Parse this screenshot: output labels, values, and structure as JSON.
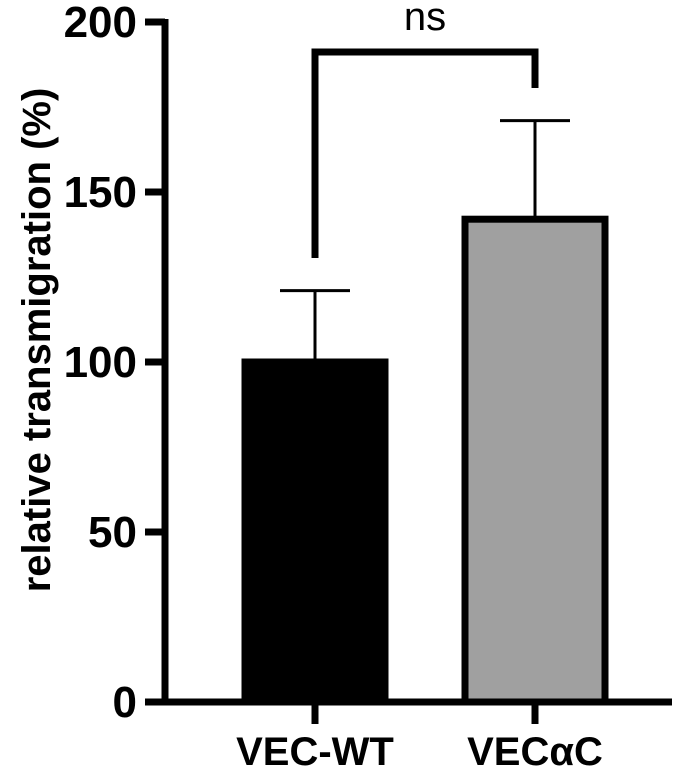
{
  "chart_data": {
    "type": "bar",
    "title": "",
    "xlabel": "",
    "ylabel": "relative transmigration (%)",
    "ylim": [
      0,
      200
    ],
    "yticks": [
      0,
      50,
      100,
      150,
      200
    ],
    "categories": [
      "VEC-WT",
      "VECαC"
    ],
    "values": [
      100,
      142
    ],
    "error_upper": [
      121,
      171
    ],
    "bar_colors": [
      "#000000",
      "#a0a0a0"
    ],
    "significance": {
      "between": [
        "VEC-WT",
        "VECαC"
      ],
      "label": "ns"
    },
    "grid": false,
    "legend": "none"
  }
}
